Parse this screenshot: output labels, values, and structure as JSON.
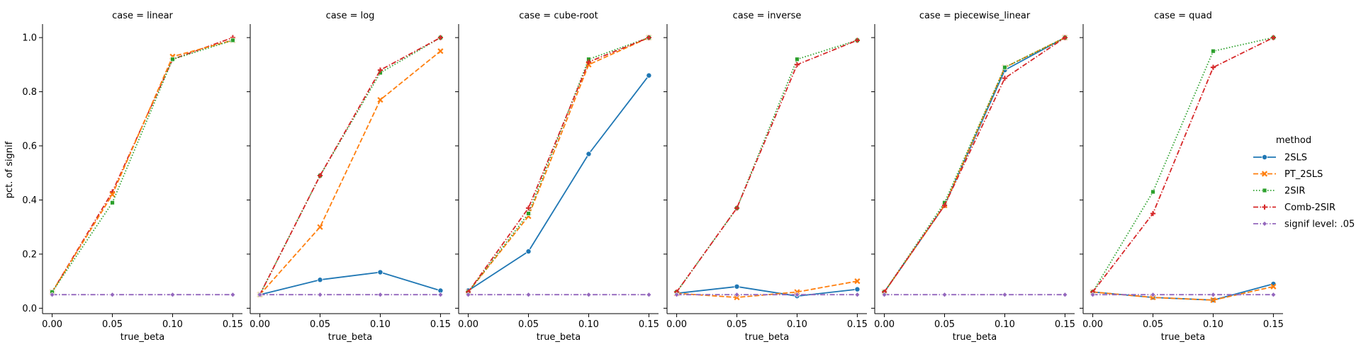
{
  "chart_data": {
    "type": "line",
    "facet_variable": "case",
    "facet_titles": [
      "case = linear",
      "case = log",
      "case = cube-root",
      "case = inverse",
      "case = piecewise_linear",
      "case = quad"
    ],
    "xlabel": "true_beta",
    "ylabel": "pct. of signif",
    "x": [
      0.0,
      0.05,
      0.1,
      0.15
    ],
    "x_tick_labels": [
      "0.00",
      "0.05",
      "0.10",
      "0.15"
    ],
    "y_ticks": [
      0.0,
      0.2,
      0.4,
      0.6,
      0.8,
      1.0
    ],
    "y_tick_labels": [
      "0.0",
      "0.2",
      "0.4",
      "0.6",
      "0.8",
      "1.0"
    ],
    "xlim": [
      -0.008,
      0.158
    ],
    "ylim": [
      -0.02,
      1.05
    ],
    "legend": {
      "title": "method",
      "placement": "right",
      "entries": [
        "2SLS",
        "PT_2SLS",
        "2SIR",
        "Comb-2SIR",
        "signif level: .05"
      ]
    },
    "series_styles": [
      {
        "name": "2SLS",
        "color": "#1f77b4",
        "dash": "",
        "marker": "circle"
      },
      {
        "name": "PT_2SLS",
        "color": "#ff7f0e",
        "dash": "7,3",
        "marker": "x"
      },
      {
        "name": "2SIR",
        "color": "#2ca02c",
        "dash": "1.5,2.5",
        "marker": "square"
      },
      {
        "name": "Comb-2SIR",
        "color": "#d62728",
        "dash": "7,2.5,1.5,2.5",
        "marker": "plus"
      },
      {
        "name": "signif level: .05",
        "color": "#9467bd",
        "dash": "7,2.5,1.5,2.5",
        "marker": "diamond"
      }
    ],
    "panels": [
      {
        "case": "linear",
        "series": [
          {
            "name": "Comb-2SIR",
            "values": [
              0.06,
              0.43,
              0.92,
              1.0
            ]
          },
          {
            "name": "PT_2SLS",
            "values": [
              0.06,
              0.42,
              0.93,
              0.99
            ]
          },
          {
            "name": "2SIR",
            "values": [
              0.06,
              0.39,
              0.92,
              0.99
            ]
          },
          {
            "name": "signif level: .05",
            "values": [
              0.05,
              0.05,
              0.05,
              0.05
            ]
          }
        ]
      },
      {
        "case": "log",
        "series": [
          {
            "name": "2SLS",
            "values": [
              0.05,
              0.105,
              0.133,
              0.065
            ]
          },
          {
            "name": "PT_2SLS",
            "values": [
              0.05,
              0.3,
              0.77,
              0.95
            ]
          },
          {
            "name": "2SIR",
            "values": [
              0.05,
              0.49,
              0.87,
              1.0
            ]
          },
          {
            "name": "Comb-2SIR",
            "values": [
              0.05,
              0.49,
              0.88,
              1.0
            ]
          },
          {
            "name": "signif level: .05",
            "values": [
              0.05,
              0.05,
              0.05,
              0.05
            ]
          }
        ]
      },
      {
        "case": "cube-root",
        "series": [
          {
            "name": "2SLS",
            "values": [
              0.065,
              0.21,
              0.57,
              0.86
            ]
          },
          {
            "name": "PT_2SLS",
            "values": [
              0.06,
              0.34,
              0.9,
              1.0
            ]
          },
          {
            "name": "2SIR",
            "values": [
              0.06,
              0.35,
              0.92,
              1.0
            ]
          },
          {
            "name": "Comb-2SIR",
            "values": [
              0.06,
              0.37,
              0.91,
              1.0
            ]
          },
          {
            "name": "signif level: .05",
            "values": [
              0.05,
              0.05,
              0.05,
              0.05
            ]
          }
        ]
      },
      {
        "case": "inverse",
        "series": [
          {
            "name": "2SLS",
            "values": [
              0.055,
              0.08,
              0.045,
              0.07
            ]
          },
          {
            "name": "PT_2SLS",
            "values": [
              0.055,
              0.04,
              0.06,
              0.1
            ]
          },
          {
            "name": "2SIR",
            "values": [
              0.06,
              0.37,
              0.92,
              0.99
            ]
          },
          {
            "name": "Comb-2SIR",
            "values": [
              0.06,
              0.37,
              0.9,
              0.99
            ]
          },
          {
            "name": "signif level: .05",
            "values": [
              0.05,
              0.05,
              0.05,
              0.05
            ]
          }
        ]
      },
      {
        "case": "piecewise_linear",
        "series": [
          {
            "name": "2SLS",
            "values": [
              0.06,
              0.38,
              0.88,
              1.0
            ]
          },
          {
            "name": "PT_2SLS",
            "values": [
              0.06,
              0.38,
              0.89,
              1.0
            ]
          },
          {
            "name": "2SIR",
            "values": [
              0.06,
              0.39,
              0.89,
              1.0
            ]
          },
          {
            "name": "Comb-2SIR",
            "values": [
              0.06,
              0.38,
              0.85,
              1.0
            ]
          },
          {
            "name": "signif level: .05",
            "values": [
              0.05,
              0.05,
              0.05,
              0.05
            ]
          }
        ]
      },
      {
        "case": "quad",
        "series": [
          {
            "name": "2SLS",
            "values": [
              0.06,
              0.04,
              0.03,
              0.09
            ]
          },
          {
            "name": "PT_2SLS",
            "values": [
              0.06,
              0.04,
              0.03,
              0.08
            ]
          },
          {
            "name": "2SIR",
            "values": [
              0.06,
              0.43,
              0.95,
              1.0
            ]
          },
          {
            "name": "Comb-2SIR",
            "values": [
              0.06,
              0.35,
              0.89,
              1.0
            ]
          },
          {
            "name": "signif level: .05",
            "values": [
              0.05,
              0.05,
              0.05,
              0.05
            ]
          }
        ]
      }
    ]
  }
}
